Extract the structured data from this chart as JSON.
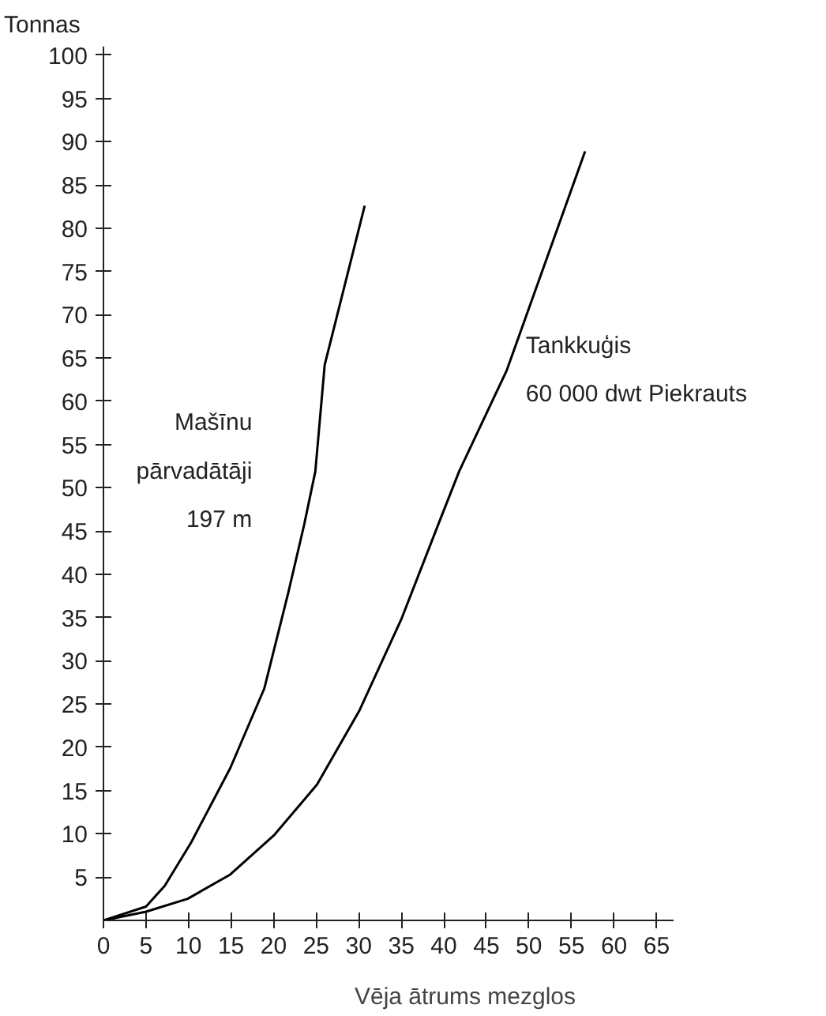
{
  "chart_data": {
    "type": "line",
    "xlabel": "Vēja ātrums mezglos",
    "ylabel": "Tonnas",
    "x": [
      0,
      5.0,
      7.2,
      10.3,
      14.9,
      18.9,
      21.7,
      23.6,
      24.9,
      26.0,
      30.7
    ],
    "series": [
      {
        "name": "Mašīnu\npārvadātāji\n197 m",
        "color": "#000000",
        "values": [
          0,
          1.6,
          4.0,
          9.0,
          17.6,
          26.8,
          37.8,
          45.8,
          51.9,
          64.2,
          82.6
        ]
      },
      {
        "name": "Tankkuģis\n60 000 dwt Piekrauts",
        "color": "#000000",
        "x": [
          0,
          5.0,
          9.9,
          14.9,
          20.1,
          25.1,
          30.1,
          35.0,
          39.6,
          41.8,
          47.4,
          56.6
        ],
        "values": [
          0,
          1.0,
          2.5,
          5.3,
          9.9,
          15.7,
          24.3,
          34.8,
          46.4,
          51.9,
          63.6,
          88.9
        ]
      }
    ],
    "xlim": [
      0,
      67
    ],
    "ylim": [
      0,
      101
    ],
    "xticks": [
      0,
      5,
      10,
      15,
      20,
      25,
      30,
      35,
      40,
      45,
      50,
      55,
      60,
      65
    ],
    "yticks": [
      5,
      10,
      15,
      20,
      25,
      30,
      35,
      40,
      45,
      50,
      55,
      60,
      65,
      70,
      75,
      80,
      85,
      90,
      95,
      100
    ],
    "grid": false,
    "legend": false,
    "marker": "none",
    "line_style": "solid"
  }
}
